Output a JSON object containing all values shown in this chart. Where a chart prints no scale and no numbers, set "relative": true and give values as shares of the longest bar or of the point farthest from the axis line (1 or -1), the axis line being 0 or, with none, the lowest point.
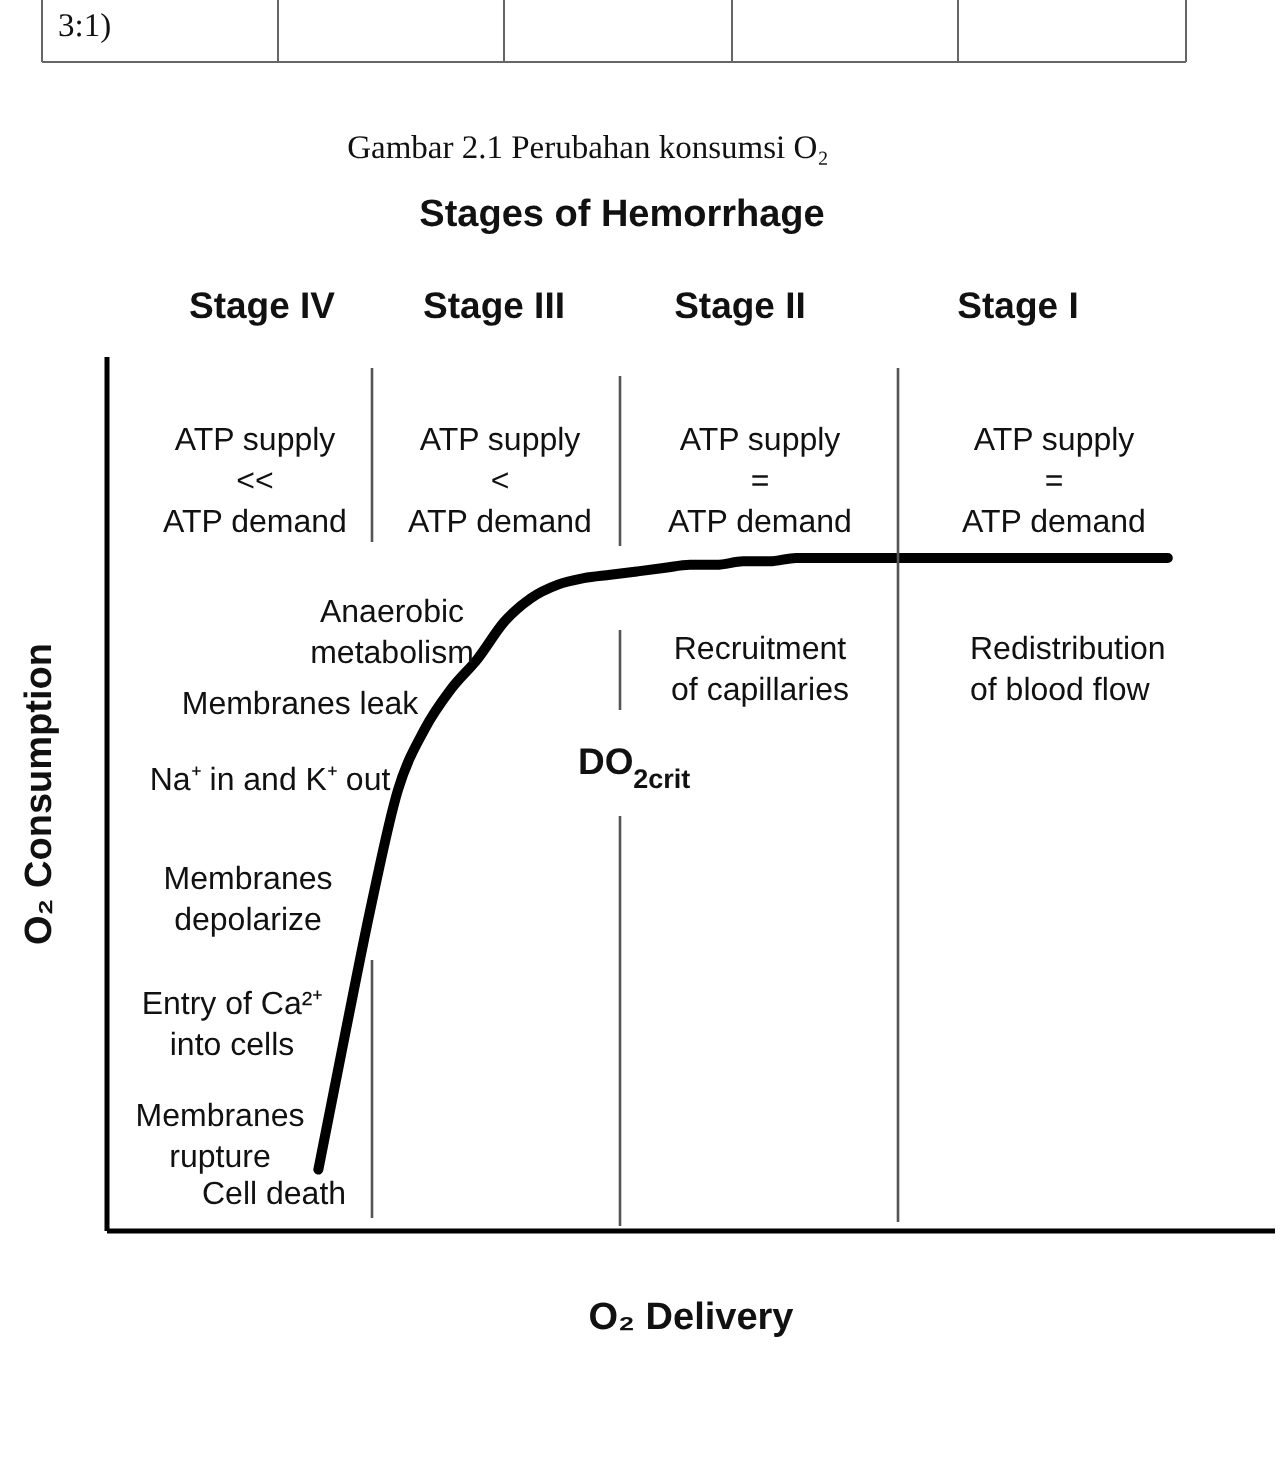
{
  "chart_data": {
    "type": "line",
    "title": "Stages of Hemorrhage",
    "xlabel": "O₂ Delivery",
    "ylabel": "O₂ Consumption",
    "relative": true,
    "categories": [
      null,
      null,
      null,
      null,
      null,
      null,
      null,
      null,
      null,
      null,
      null,
      null,
      null,
      null,
      null,
      null,
      null,
      null,
      null,
      null,
      null,
      null,
      null,
      null,
      null,
      null,
      null,
      null,
      null,
      null,
      null,
      null,
      null,
      null,
      null,
      null,
      null,
      null,
      null,
      null,
      null,
      null,
      null,
      null,
      null
    ],
    "series": [
      {
        "color": "#000000",
        "values": [
          null,
          null,
          null,
          null,
          null,
          null,
          null,
          null,
          0.09,
          0.29,
          0.485,
          0.655,
          0.745,
          0.805,
          0.85,
          0.905,
          0.94,
          0.96,
          0.97,
          0.975,
          0.98,
          0.985,
          0.99,
          0.99,
          0.995,
          0.995,
          1,
          1,
          1,
          1,
          1,
          1,
          1,
          1,
          1,
          1,
          1,
          1,
          1,
          1,
          1,
          null,
          null,
          null,
          null
        ]
      }
    ],
    "annotations": [
      "3:1)",
      "Gambar 2.1 Perubahan konsumsi O₂",
      "Stage IV",
      "Stage III",
      "Stage II",
      "Stage I",
      "ATP supply\n<<\nATP demand",
      "ATP supply\n<\nATP demand",
      "ATP supply\n=\nATP demand",
      "ATP supply\n=\nATP demand",
      "Anaerobic\nmetabolism",
      "Membranes leak",
      "Na⁺ in and K⁺ out",
      "Membranes\ndepolarize",
      "Entry of Ca²⁺\ninto cells",
      "Membranes\nrupture",
      "Cell death",
      "DO$_{2crit}$",
      "Recruitment\nof capillaries",
      "Redistribution\nof blood flow"
    ]
  }
}
